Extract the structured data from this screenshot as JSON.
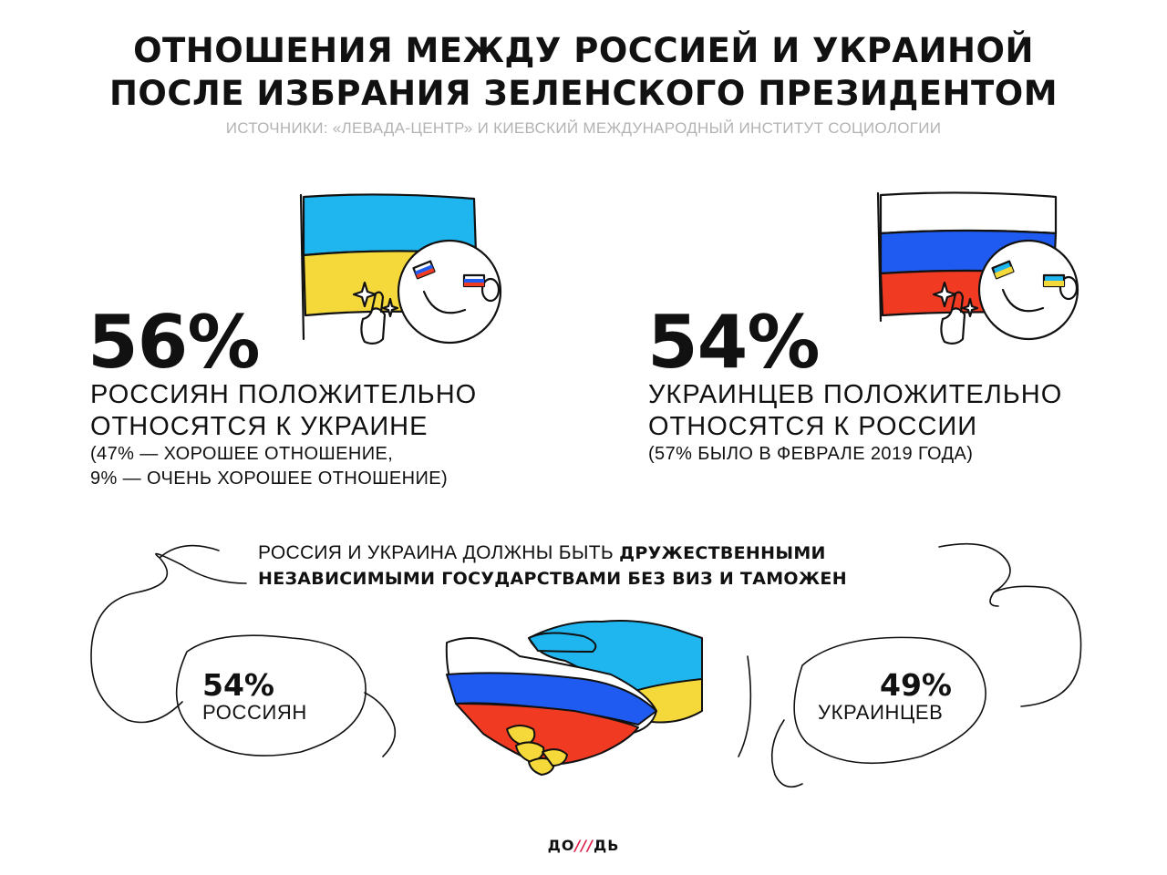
{
  "header": {
    "title_line1": "ОТНОШЕНИЯ МЕЖДУ РОССИЕЙ И УКРАИНОЙ",
    "title_line2": "ПОСЛЕ ИЗБРАНИЯ ЗЕЛЕНСКОГО ПРЕЗИДЕНТОМ",
    "sources": "ИСТОЧНИКИ: «ЛЕВАДА-ЦЕНТР» И КИЕВСКИЙ МЕЖДУНАРОДНЫЙ ИНСТИТУТ СОЦИОЛОГИИ"
  },
  "left_stat": {
    "value": "56%",
    "line1": "РОССИЯН ПОЛОЖИТЕЛЬНО",
    "line2": "ОТНОСЯТСЯ К УКРАИНЕ",
    "note1": "(47% — ХОРОШЕЕ ОТНОШЕНИЕ,",
    "note2": "9% — ОЧЕНЬ ХОРОШЕЕ ОТНОШЕНИЕ)",
    "flag_icon": "ukraine-flag-icon"
  },
  "right_stat": {
    "value": "54%",
    "line1": "УКРАИНЦЕВ ПОЛОЖИТЕЛЬНО",
    "line2": "ОТНОСЯТСЯ К РОССИИ",
    "note1": "(57% БЫЛО В ФЕВРАЛЕ 2019 ГОДА)",
    "flag_icon": "russia-flag-icon"
  },
  "statement": {
    "plain1": "РОССИЯ И УКРАИНА ДОЛЖНЫ БЫТЬ ",
    "bold1": "ДРУЖЕСТВЕННЫМИ",
    "bold2": "НЕЗАВИСИМЫМИ ГОСУДАРСТВАМИ БЕЗ ВИЗ И ТАМОЖЕН"
  },
  "bubbles": {
    "left": {
      "value": "54%",
      "label": "РОССИЯН"
    },
    "right": {
      "value": "49%",
      "label": "УКРАИНЦЕВ"
    }
  },
  "logo": {
    "part1": "ДО",
    "slash": "///",
    "part2": "ДЬ"
  },
  "colors": {
    "ua_blue": "#1fb6f0",
    "ua_yellow": "#f5d83a",
    "ru_white": "#ffffff",
    "ru_blue": "#1f5bf0",
    "ru_red": "#f03a22",
    "logo_accent": "#e0204a"
  }
}
